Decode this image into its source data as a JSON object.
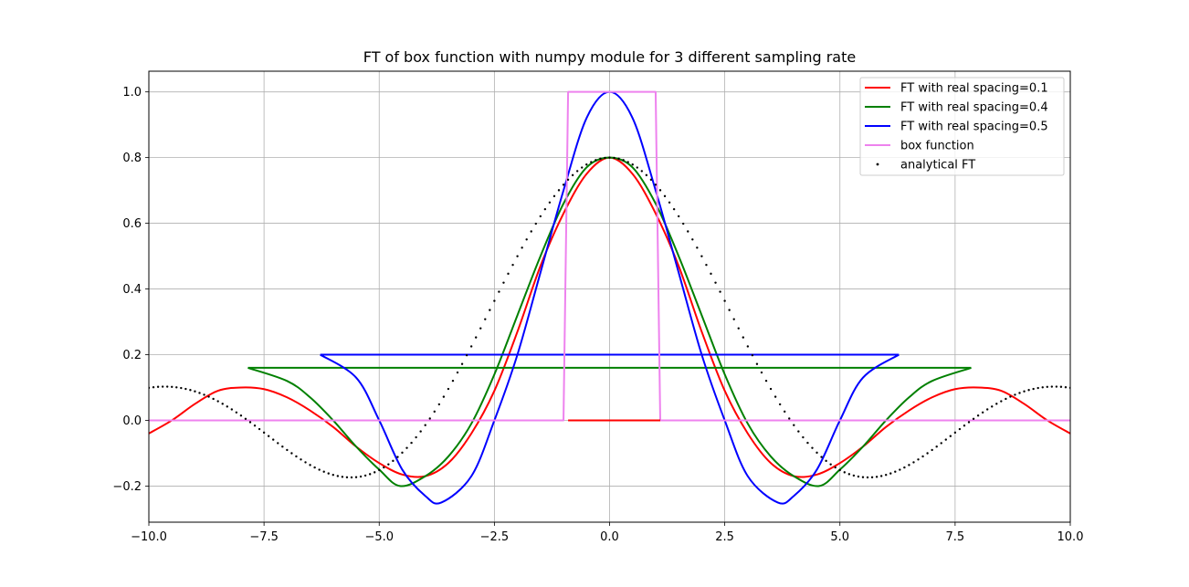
{
  "chart_data": {
    "type": "line",
    "title": "FT of box function with numpy module for 3 different sampling rate",
    "xlabel": "",
    "ylabel": "",
    "xlim": [
      -10.0,
      10.0
    ],
    "ylim": [
      -0.31,
      1.063
    ],
    "grid": true,
    "legend_position": "top-right",
    "x_ticks": [
      -10.0,
      -7.5,
      -5.0,
      -2.5,
      0.0,
      2.5,
      5.0,
      7.5,
      10.0
    ],
    "x_tick_labels": [
      "−10.0",
      "−7.5",
      "−5.0",
      "−2.5",
      "0.0",
      "2.5",
      "5.0",
      "7.5",
      "10.0"
    ],
    "y_ticks": [
      -0.2,
      0.0,
      0.2,
      0.4,
      0.6,
      0.8,
      1.0
    ],
    "y_tick_labels": [
      "−0.2",
      "0.0",
      "0.2",
      "0.4",
      "0.6",
      "0.8",
      "1.0"
    ],
    "series": [
      {
        "name": "FT with real spacing=0.1",
        "color": "#ff0000",
        "kind": "line",
        "x": [
          -10.0,
          -9.5,
          -9.0,
          -8.5,
          -8.0,
          -7.5,
          -7.0,
          -6.5,
          -6.0,
          -5.5,
          -5.0,
          -4.5,
          -4.0,
          -3.5,
          -3.0,
          -2.5,
          -2.0,
          -1.5,
          -1.0,
          -0.5,
          0.0,
          0.5,
          1.0,
          1.5,
          2.0,
          2.5,
          3.0,
          3.5,
          4.0,
          4.5,
          5.0,
          5.5,
          6.0,
          6.5,
          7.0,
          7.5,
          8.0,
          8.5,
          9.0,
          9.5,
          10.0
        ],
        "y": [
          -0.04,
          0.0,
          0.05,
          0.09,
          0.1,
          0.095,
          0.07,
          0.03,
          -0.02,
          -0.08,
          -0.13,
          -0.165,
          -0.17,
          -0.13,
          -0.04,
          0.09,
          0.27,
          0.47,
          0.63,
          0.75,
          0.8,
          0.75,
          0.63,
          0.47,
          0.27,
          0.09,
          -0.04,
          -0.13,
          -0.17,
          -0.165,
          -0.13,
          -0.08,
          -0.02,
          0.03,
          0.07,
          0.095,
          0.1,
          0.09,
          0.05,
          0.0,
          -0.04
        ]
      },
      {
        "name": "FT with real spacing=0.4",
        "color": "#008000",
        "kind": "line",
        "x": [
          -7.85,
          -7.0,
          -6.5,
          -6.0,
          -5.5,
          -5.0,
          -4.55,
          -4.0,
          -3.5,
          -3.0,
          -2.5,
          -2.0,
          -1.5,
          -1.0,
          -0.5,
          0.0,
          0.5,
          1.0,
          1.5,
          2.0,
          2.5,
          3.0,
          3.5,
          4.0,
          4.55,
          5.0,
          5.5,
          6.0,
          6.5,
          7.0,
          7.85
        ],
        "y": [
          0.16,
          0.12,
          0.07,
          0.0,
          -0.08,
          -0.15,
          -0.2,
          -0.17,
          -0.11,
          -0.01,
          0.14,
          0.32,
          0.5,
          0.66,
          0.77,
          0.8,
          0.77,
          0.66,
          0.5,
          0.32,
          0.14,
          -0.01,
          -0.11,
          -0.17,
          -0.2,
          -0.15,
          -0.08,
          0.0,
          0.07,
          0.12,
          0.16
        ],
        "flat_line": {
          "x": [
            -7.85,
            7.85
          ],
          "y": 0.16
        }
      },
      {
        "name": "FT with real spacing=0.5",
        "color": "#0000ff",
        "kind": "line",
        "x": [
          -6.28,
          -5.5,
          -5.0,
          -4.5,
          -4.0,
          -3.65,
          -3.0,
          -2.5,
          -2.0,
          -1.5,
          -1.0,
          -0.5,
          0.0,
          0.5,
          1.0,
          1.5,
          2.0,
          2.5,
          3.0,
          3.65,
          4.0,
          4.5,
          5.0,
          5.5,
          6.28
        ],
        "y": [
          0.2,
          0.13,
          0.0,
          -0.15,
          -0.23,
          -0.25,
          -0.17,
          0.0,
          0.2,
          0.45,
          0.7,
          0.92,
          1.0,
          0.92,
          0.7,
          0.45,
          0.2,
          0.0,
          -0.17,
          -0.25,
          -0.23,
          -0.15,
          0.0,
          0.13,
          0.2
        ],
        "flat_line": {
          "x": [
            -6.28,
            6.28
          ],
          "y": 0.2
        }
      },
      {
        "name": "box function",
        "color": "#ee82ee",
        "kind": "line",
        "x": [
          -10.0,
          -1.0,
          -0.9,
          1.0,
          1.1,
          10.0
        ],
        "y": [
          0.0,
          0.0,
          1.0,
          1.0,
          0.0,
          0.0
        ]
      },
      {
        "name": "analytical FT",
        "color": "#000000",
        "kind": "scatter",
        "x_range": [
          -10.0,
          10.0
        ],
        "function": "0.8*sinc(0.8x/pi)"
      }
    ]
  }
}
